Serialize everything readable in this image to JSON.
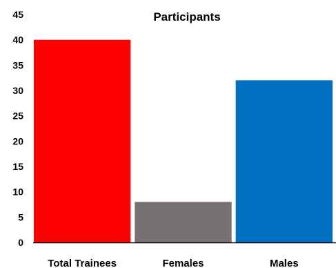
{
  "chart_data": {
    "type": "bar",
    "title": "Participants",
    "categories": [
      "Total Trainees",
      "Females",
      "Males"
    ],
    "values": [
      40,
      8,
      32
    ],
    "colors": [
      "#ff0000",
      "#767171",
      "#0070c0"
    ],
    "ylim": [
      0,
      45
    ],
    "yticks": [
      "0",
      "5",
      "10",
      "15",
      "20",
      "25",
      "30",
      "35",
      "40",
      "45"
    ],
    "grid": false,
    "legend": "none"
  }
}
